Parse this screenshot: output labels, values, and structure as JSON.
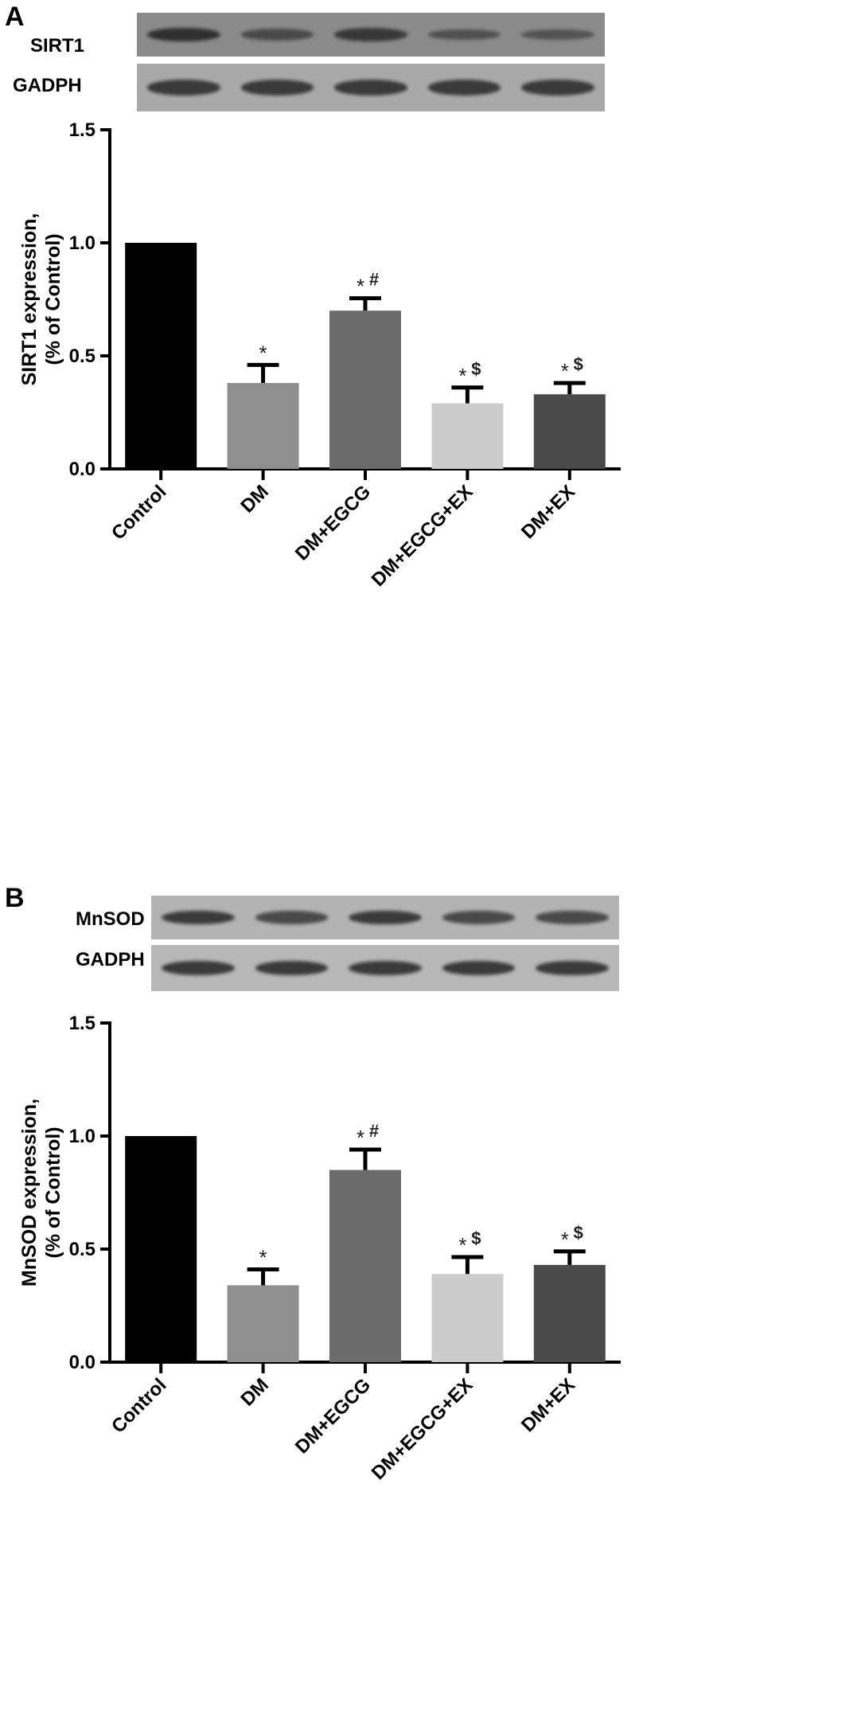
{
  "panels": [
    {
      "letter": "A",
      "blot": {
        "rows": [
          {
            "label": "SIRT1",
            "background": "#8a8a8a",
            "band_color": "#2f2f2f",
            "band_intensity": [
              1.0,
              0.55,
              0.85,
              0.45,
              0.4
            ]
          },
          {
            "label": "GADPH",
            "background": "#a9a9a9",
            "band_color": "#3a3a3a",
            "band_intensity": [
              1.0,
              1.0,
              1.0,
              1.0,
              1.0
            ]
          }
        ]
      },
      "chart_data": {
        "type": "bar",
        "categories": [
          "Control",
          "DM",
          "DM+EGCG",
          "DM+EGCG+EX",
          "DM+EX"
        ],
        "values": [
          1.0,
          0.38,
          0.7,
          0.29,
          0.33
        ],
        "errors": [
          0.0,
          0.08,
          0.055,
          0.07,
          0.05
        ],
        "colors": [
          "#000000",
          "#8f8f8f",
          "#6b6b6b",
          "#cccccc",
          "#4a4a4a"
        ],
        "annotations": [
          {
            "star": "",
            "sym": ""
          },
          {
            "star": "*",
            "sym": ""
          },
          {
            "star": "*",
            "sym": "#"
          },
          {
            "star": "*",
            "sym": "$"
          },
          {
            "star": "*",
            "sym": "$"
          }
        ],
        "ylabel_line1": "SIRT1 expression,",
        "ylabel_line2": "(% of Control)",
        "ylim": [
          0,
          1.5
        ],
        "yticks": [
          "0.0",
          "0.5",
          "1.0",
          "1.5"
        ],
        "ytick_values": [
          0,
          0.5,
          1.0,
          1.5
        ]
      }
    },
    {
      "letter": "B",
      "blot": {
        "rows": [
          {
            "label": "MnSOD",
            "background": "#b3b3b3",
            "band_color": "#3a3a3a",
            "band_intensity": [
              1.0,
              0.8,
              1.0,
              0.8,
              0.8
            ]
          },
          {
            "label": "GADPH",
            "background": "#b8b8b8",
            "band_color": "#3a3a3a",
            "band_intensity": [
              1.0,
              1.0,
              1.0,
              1.0,
              1.0
            ]
          }
        ]
      },
      "chart_data": {
        "type": "bar",
        "categories": [
          "Control",
          "DM",
          "DM+EGCG",
          "DM+EGCG+EX",
          "DM+EX"
        ],
        "values": [
          1.0,
          0.34,
          0.85,
          0.39,
          0.43
        ],
        "errors": [
          0.0,
          0.07,
          0.09,
          0.075,
          0.06
        ],
        "colors": [
          "#000000",
          "#8f8f8f",
          "#6b6b6b",
          "#cccccc",
          "#4a4a4a"
        ],
        "annotations": [
          {
            "star": "",
            "sym": ""
          },
          {
            "star": "*",
            "sym": ""
          },
          {
            "star": "*",
            "sym": "#"
          },
          {
            "star": "*",
            "sym": "$"
          },
          {
            "star": "*",
            "sym": "$"
          }
        ],
        "ylabel_line1": "MnSOD expression,",
        "ylabel_line2": "(% of Control)",
        "ylim": [
          0,
          1.5
        ],
        "yticks": [
          "0.0",
          "0.5",
          "1.0",
          "1.5"
        ],
        "ytick_values": [
          0,
          0.5,
          1.0,
          1.5
        ]
      }
    }
  ]
}
